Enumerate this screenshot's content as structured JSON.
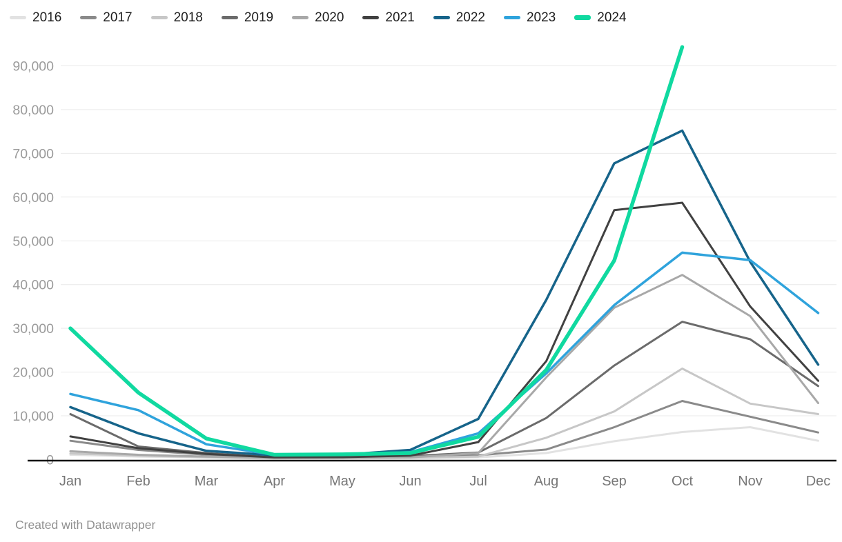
{
  "chart_data": {
    "type": "line",
    "title": "",
    "xlabel": "",
    "ylabel": "",
    "grid": "horizontal",
    "legend_position": "top-left",
    "x_categories": [
      "Jan",
      "Feb",
      "Mar",
      "Apr",
      "May",
      "Jun",
      "Jul",
      "Aug",
      "Sep",
      "Oct",
      "Nov",
      "Dec"
    ],
    "y_ticks": [
      0,
      10000,
      20000,
      30000,
      40000,
      50000,
      60000,
      70000,
      80000,
      90000
    ],
    "ylim": [
      0,
      95000
    ],
    "series": [
      {
        "name": "2016",
        "color": "#e2e2e2",
        "line_width": 3,
        "values": [
          1100,
          700,
          450,
          250,
          300,
          350,
          500,
          1500,
          4200,
          6300,
          7400,
          4300
        ]
      },
      {
        "name": "2017",
        "color": "#8a8a8a",
        "line_width": 3,
        "values": [
          4300,
          2200,
          1100,
          400,
          450,
          600,
          1000,
          2300,
          7400,
          13400,
          9800,
          6200
        ]
      },
      {
        "name": "2018",
        "color": "#c7c7c7",
        "line_width": 3,
        "values": [
          1400,
          900,
          550,
          300,
          350,
          400,
          700,
          5000,
          11000,
          20800,
          12800,
          10400
        ]
      },
      {
        "name": "2019",
        "color": "#6b6b6b",
        "line_width": 3,
        "values": [
          10400,
          3000,
          1500,
          500,
          550,
          800,
          1600,
          9500,
          21500,
          31500,
          27500,
          16800
        ]
      },
      {
        "name": "2020",
        "color": "#a8a8a8",
        "line_width": 3,
        "values": [
          1900,
          1100,
          700,
          350,
          400,
          500,
          1500,
          18800,
          34700,
          42200,
          32800,
          12900
        ]
      },
      {
        "name": "2021",
        "color": "#414141",
        "line_width": 3,
        "values": [
          5300,
          2600,
          1300,
          500,
          550,
          900,
          4000,
          22500,
          57000,
          58700,
          35000,
          18000
        ]
      },
      {
        "name": "2022",
        "color": "#16648a",
        "line_width": 3.5,
        "values": [
          12000,
          6000,
          2000,
          1000,
          1100,
          2200,
          9300,
          36500,
          67700,
          75200,
          45200,
          21700
        ]
      },
      {
        "name": "2023",
        "color": "#2fa3dc",
        "line_width": 3.5,
        "values": [
          15000,
          11300,
          3500,
          1100,
          1200,
          1700,
          6000,
          19700,
          35300,
          47300,
          45600,
          33500
        ]
      },
      {
        "name": "2024",
        "color": "#10d9a0",
        "line_width": 5.5,
        "values": [
          30000,
          15300,
          4800,
          1100,
          1200,
          1500,
          5200,
          20500,
          45500,
          94300,
          null,
          null
        ]
      }
    ]
  },
  "footer": {
    "credit": "Created with Datawrapper"
  }
}
